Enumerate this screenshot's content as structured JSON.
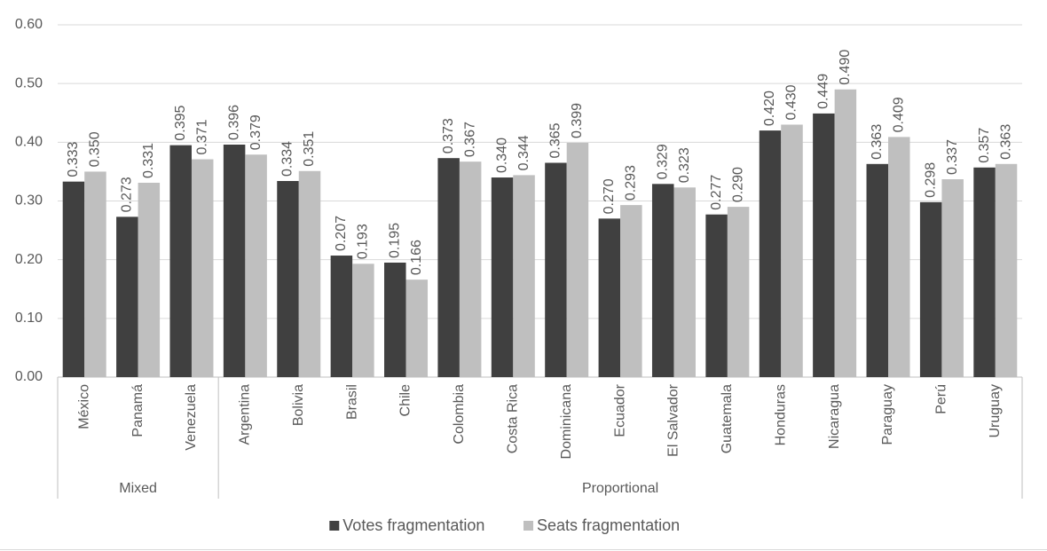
{
  "chart_data": {
    "type": "bar",
    "groups": [
      {
        "name": "Mixed",
        "categories": [
          "México",
          "Panamá",
          "Venezuela"
        ]
      },
      {
        "name": "Proportional",
        "categories": [
          "Argentina",
          "Bolivia",
          "Brasil",
          "Chile",
          "Colombia",
          "Costa Rica",
          "Dominicana",
          "Ecuador",
          "El Salvador",
          "Guatemala",
          "Honduras",
          "Nicaragua",
          "Paraguay",
          "Perú",
          "Uruguay"
        ]
      }
    ],
    "series": [
      {
        "name": "Votes fragmentation",
        "color": "#404040",
        "values": [
          0.333,
          0.273,
          0.395,
          0.396,
          0.334,
          0.207,
          0.195,
          0.373,
          0.34,
          0.365,
          0.27,
          0.329,
          0.277,
          0.42,
          0.449,
          0.363,
          0.298,
          0.357
        ],
        "value_labels": [
          "0.333",
          "0.273",
          "0.395",
          "0.396",
          "0.334",
          "0.207",
          "0.195",
          "0.373",
          "0.340",
          "0.365",
          "0.270",
          "0.329",
          "0.277",
          "0.420",
          "0.449",
          "0.363",
          "0.298",
          "0.357"
        ]
      },
      {
        "name": "Seats fragmentation",
        "color": "#bfbfbf",
        "values": [
          0.35,
          0.331,
          0.371,
          0.379,
          0.351,
          0.193,
          0.166,
          0.367,
          0.344,
          0.399,
          0.293,
          0.323,
          0.29,
          0.43,
          0.49,
          0.409,
          0.337,
          0.363
        ],
        "value_labels": [
          "0.350",
          "0.331",
          "0.371",
          "0.379",
          "0.351",
          "0.193",
          "0.166",
          "0.367",
          "0.344",
          "0.399",
          "0.293",
          "0.323",
          "0.290",
          "0.430",
          "0.490",
          "0.409",
          "0.337",
          "0.363"
        ]
      }
    ],
    "ylim": [
      0,
      0.6
    ],
    "yticks": [
      {
        "value": 0,
        "label": "0.00"
      },
      {
        "value": 0.1,
        "label": "0.10"
      },
      {
        "value": 0.2,
        "label": "0.20"
      },
      {
        "value": 0.3,
        "label": "0.30"
      },
      {
        "value": 0.4,
        "label": "0.40"
      },
      {
        "value": 0.5,
        "label": "0.50"
      },
      {
        "value": 0.6,
        "label": "0.60"
      }
    ],
    "grid": true,
    "legend": "bottom"
  }
}
